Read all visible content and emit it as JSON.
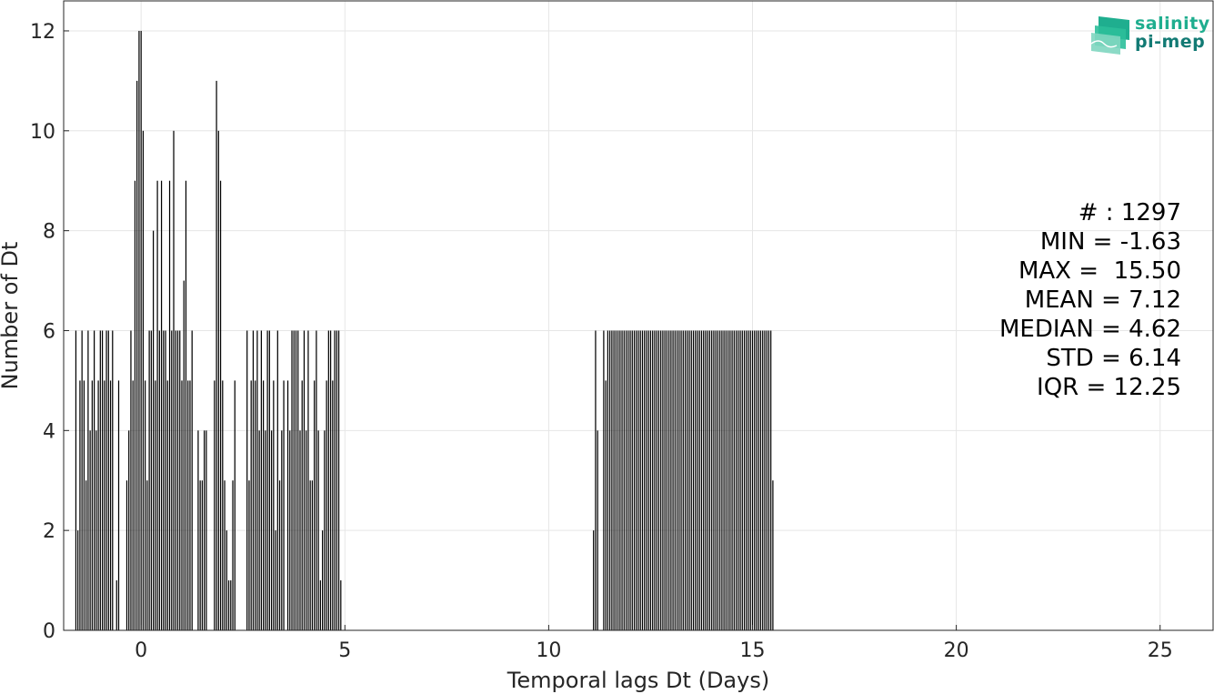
{
  "chart_data": {
    "type": "bar",
    "xlabel": "Temporal lags Dt (Days)",
    "ylabel": "Number of Dt",
    "xlim": [
      -1.9,
      26.3
    ],
    "ylim": [
      0,
      12.6
    ],
    "xticks": [
      0,
      5,
      10,
      15,
      20,
      25
    ],
    "yticks": [
      0,
      2,
      4,
      6,
      8,
      10,
      12
    ],
    "grid": true,
    "bar_color": "#000000",
    "bars": [
      [
        -1.6,
        6
      ],
      [
        -1.55,
        2
      ],
      [
        -1.5,
        5
      ],
      [
        -1.45,
        6
      ],
      [
        -1.4,
        5
      ],
      [
        -1.35,
        3
      ],
      [
        -1.3,
        6
      ],
      [
        -1.25,
        4
      ],
      [
        -1.2,
        5
      ],
      [
        -1.15,
        6
      ],
      [
        -1.1,
        4
      ],
      [
        -1.05,
        5
      ],
      [
        -1.0,
        6
      ],
      [
        -0.95,
        6
      ],
      [
        -0.9,
        5
      ],
      [
        -0.85,
        6
      ],
      [
        -0.8,
        6
      ],
      [
        -0.75,
        5
      ],
      [
        -0.7,
        6
      ],
      [
        -0.6,
        1
      ],
      [
        -0.55,
        5
      ],
      [
        -0.35,
        3
      ],
      [
        -0.3,
        4
      ],
      [
        -0.25,
        6
      ],
      [
        -0.2,
        5
      ],
      [
        -0.15,
        9
      ],
      [
        -0.1,
        11
      ],
      [
        -0.05,
        12
      ],
      [
        0.0,
        12
      ],
      [
        0.05,
        10
      ],
      [
        0.1,
        5
      ],
      [
        0.15,
        3
      ],
      [
        0.2,
        6
      ],
      [
        0.25,
        6
      ],
      [
        0.3,
        8
      ],
      [
        0.35,
        5
      ],
      [
        0.4,
        9
      ],
      [
        0.45,
        6
      ],
      [
        0.5,
        9
      ],
      [
        0.55,
        6
      ],
      [
        0.6,
        6
      ],
      [
        0.65,
        5
      ],
      [
        0.7,
        9
      ],
      [
        0.75,
        6
      ],
      [
        0.8,
        10
      ],
      [
        0.85,
        6
      ],
      [
        0.9,
        6
      ],
      [
        0.95,
        6
      ],
      [
        1.0,
        5
      ],
      [
        1.05,
        7
      ],
      [
        1.1,
        9
      ],
      [
        1.15,
        5
      ],
      [
        1.2,
        5
      ],
      [
        1.25,
        6
      ],
      [
        1.4,
        4
      ],
      [
        1.45,
        3
      ],
      [
        1.5,
        3
      ],
      [
        1.55,
        4
      ],
      [
        1.6,
        4
      ],
      [
        1.8,
        5
      ],
      [
        1.85,
        11
      ],
      [
        1.9,
        10
      ],
      [
        1.95,
        9
      ],
      [
        2.0,
        5
      ],
      [
        2.05,
        3
      ],
      [
        2.1,
        2
      ],
      [
        2.15,
        1
      ],
      [
        2.2,
        1
      ],
      [
        2.25,
        3
      ],
      [
        2.3,
        5
      ],
      [
        2.6,
        6
      ],
      [
        2.65,
        3
      ],
      [
        2.7,
        5
      ],
      [
        2.75,
        6
      ],
      [
        2.8,
        5
      ],
      [
        2.85,
        6
      ],
      [
        2.9,
        4
      ],
      [
        2.95,
        6
      ],
      [
        3.0,
        5
      ],
      [
        3.05,
        4
      ],
      [
        3.1,
        6
      ],
      [
        3.15,
        6
      ],
      [
        3.2,
        4
      ],
      [
        3.25,
        5
      ],
      [
        3.3,
        2
      ],
      [
        3.35,
        6
      ],
      [
        3.4,
        3
      ],
      [
        3.45,
        4
      ],
      [
        3.5,
        5
      ],
      [
        3.6,
        5
      ],
      [
        3.65,
        4
      ],
      [
        3.7,
        6
      ],
      [
        3.75,
        6
      ],
      [
        3.8,
        6
      ],
      [
        3.85,
        6
      ],
      [
        3.9,
        4
      ],
      [
        3.95,
        5
      ],
      [
        4.0,
        6
      ],
      [
        4.05,
        4
      ],
      [
        4.1,
        6
      ],
      [
        4.15,
        3
      ],
      [
        4.2,
        3
      ],
      [
        4.25,
        5
      ],
      [
        4.3,
        6
      ],
      [
        4.35,
        4
      ],
      [
        4.4,
        1
      ],
      [
        4.45,
        2
      ],
      [
        4.5,
        4
      ],
      [
        4.55,
        5
      ],
      [
        4.6,
        6
      ],
      [
        4.65,
        6
      ],
      [
        4.7,
        5
      ],
      [
        4.75,
        6
      ],
      [
        4.8,
        6
      ],
      [
        4.85,
        6
      ],
      [
        4.9,
        1
      ],
      [
        11.1,
        2
      ],
      [
        11.15,
        6
      ],
      [
        11.2,
        4
      ],
      [
        11.35,
        6
      ],
      [
        11.4,
        5
      ],
      [
        11.45,
        6
      ],
      [
        11.5,
        6
      ],
      [
        11.55,
        6
      ],
      [
        11.6,
        6
      ],
      [
        11.65,
        6
      ],
      [
        11.7,
        6
      ],
      [
        11.75,
        6
      ],
      [
        11.8,
        6
      ],
      [
        11.85,
        6
      ],
      [
        11.9,
        6
      ],
      [
        11.95,
        6
      ],
      [
        12.0,
        6
      ],
      [
        12.05,
        6
      ],
      [
        12.1,
        6
      ],
      [
        12.15,
        6
      ],
      [
        12.2,
        6
      ],
      [
        12.25,
        6
      ],
      [
        12.3,
        6
      ],
      [
        12.35,
        6
      ],
      [
        12.4,
        6
      ],
      [
        12.45,
        6
      ],
      [
        12.5,
        6
      ],
      [
        12.55,
        6
      ],
      [
        12.6,
        6
      ],
      [
        12.65,
        6
      ],
      [
        12.7,
        6
      ],
      [
        12.75,
        6
      ],
      [
        12.8,
        6
      ],
      [
        12.85,
        6
      ],
      [
        12.9,
        6
      ],
      [
        12.95,
        6
      ],
      [
        13.0,
        6
      ],
      [
        13.05,
        6
      ],
      [
        13.1,
        6
      ],
      [
        13.15,
        6
      ],
      [
        13.2,
        6
      ],
      [
        13.25,
        6
      ],
      [
        13.3,
        6
      ],
      [
        13.35,
        6
      ],
      [
        13.4,
        6
      ],
      [
        13.45,
        6
      ],
      [
        13.5,
        6
      ],
      [
        13.55,
        6
      ],
      [
        13.6,
        6
      ],
      [
        13.65,
        6
      ],
      [
        13.7,
        6
      ],
      [
        13.75,
        6
      ],
      [
        13.8,
        6
      ],
      [
        13.85,
        6
      ],
      [
        13.9,
        6
      ],
      [
        13.95,
        6
      ],
      [
        14.0,
        6
      ],
      [
        14.05,
        6
      ],
      [
        14.1,
        6
      ],
      [
        14.15,
        6
      ],
      [
        14.2,
        6
      ],
      [
        14.25,
        6
      ],
      [
        14.3,
        6
      ],
      [
        14.35,
        6
      ],
      [
        14.4,
        6
      ],
      [
        14.45,
        6
      ],
      [
        14.5,
        6
      ],
      [
        14.55,
        6
      ],
      [
        14.6,
        6
      ],
      [
        14.65,
        6
      ],
      [
        14.7,
        6
      ],
      [
        14.75,
        6
      ],
      [
        14.8,
        6
      ],
      [
        14.85,
        6
      ],
      [
        14.9,
        6
      ],
      [
        14.95,
        6
      ],
      [
        15.0,
        6
      ],
      [
        15.05,
        6
      ],
      [
        15.1,
        6
      ],
      [
        15.15,
        6
      ],
      [
        15.2,
        6
      ],
      [
        15.25,
        6
      ],
      [
        15.3,
        6
      ],
      [
        15.35,
        6
      ],
      [
        15.4,
        6
      ],
      [
        15.45,
        6
      ],
      [
        15.5,
        3
      ]
    ]
  },
  "stats": {
    "count": "# : 1297",
    "min": "MIN = -1.63",
    "max": "MAX =  15.50",
    "mean": "MEAN = 7.12",
    "median": "MEDIAN = 4.62",
    "std": "STD = 6.14",
    "iqr": "IQR = 12.25"
  },
  "logo": {
    "line1": "salinity",
    "line2": "pi-mep",
    "colors": [
      "#1fae8f",
      "#127a74"
    ]
  }
}
